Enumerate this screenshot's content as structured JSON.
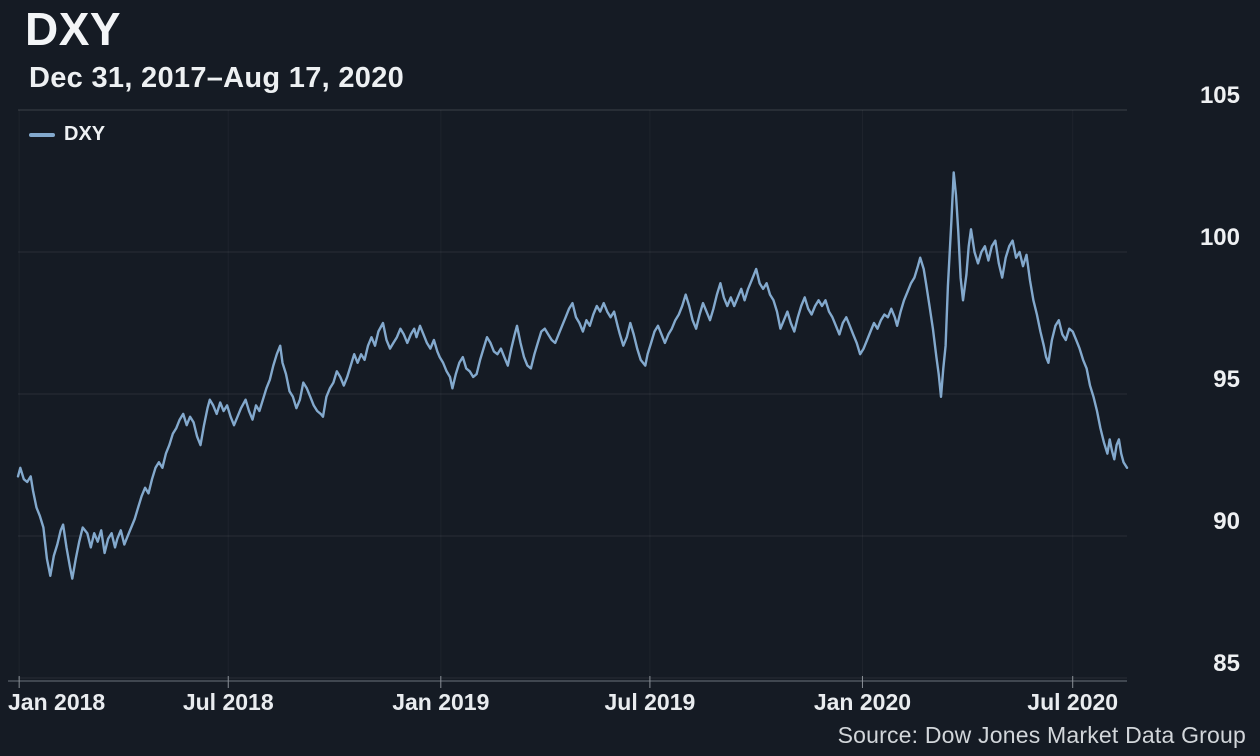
{
  "header": {
    "title": "DXY",
    "subtitle": "Dec 31, 2017–Aug 17, 2020"
  },
  "legend": {
    "label": "DXY"
  },
  "footer": {
    "source": "Source: Dow Jones Market Data Group"
  },
  "colors": {
    "background": "#151b24",
    "line": "#83a9cd",
    "text": "#eef0f2",
    "muted_text": "#d2d6da"
  },
  "chart_data": {
    "type": "line",
    "title": "DXY",
    "subtitle": "Dec 31, 2017–Aug 17, 2020",
    "series_name": "DXY",
    "x_unit": "days since 2017-12-31",
    "x_range": [
      0,
      960
    ],
    "ylim": [
      85,
      105
    ],
    "y_ticks": [
      85,
      90,
      95,
      100,
      105
    ],
    "x_ticks": [
      {
        "day": 1,
        "label": "Jan 2018"
      },
      {
        "day": 182,
        "label": "Jul 2018"
      },
      {
        "day": 366,
        "label": "Jan 2019"
      },
      {
        "day": 547,
        "label": "Jul 2019"
      },
      {
        "day": 731,
        "label": "Jan 2020"
      },
      {
        "day": 913,
        "label": "Jul 2020"
      }
    ],
    "grid": true,
    "legend_position": "top-left",
    "y_axis_side": "right",
    "points": [
      [
        0,
        92.1
      ],
      [
        2,
        92.4
      ],
      [
        5,
        92.0
      ],
      [
        8,
        91.9
      ],
      [
        11,
        92.1
      ],
      [
        13,
        91.6
      ],
      [
        16,
        91.0
      ],
      [
        19,
        90.7
      ],
      [
        22,
        90.3
      ],
      [
        25,
        89.2
      ],
      [
        28,
        88.6
      ],
      [
        31,
        89.3
      ],
      [
        34,
        89.7
      ],
      [
        37,
        90.2
      ],
      [
        39,
        90.4
      ],
      [
        42,
        89.6
      ],
      [
        45,
        88.9
      ],
      [
        47,
        88.5
      ],
      [
        50,
        89.2
      ],
      [
        53,
        89.8
      ],
      [
        56,
        90.3
      ],
      [
        60,
        90.1
      ],
      [
        63,
        89.6
      ],
      [
        66,
        90.1
      ],
      [
        69,
        89.8
      ],
      [
        72,
        90.2
      ],
      [
        75,
        89.4
      ],
      [
        78,
        89.9
      ],
      [
        81,
        90.1
      ],
      [
        84,
        89.6
      ],
      [
        86,
        89.9
      ],
      [
        89,
        90.2
      ],
      [
        92,
        89.7
      ],
      [
        95,
        90.0
      ],
      [
        98,
        90.3
      ],
      [
        101,
        90.6
      ],
      [
        104,
        91.0
      ],
      [
        107,
        91.4
      ],
      [
        110,
        91.7
      ],
      [
        113,
        91.5
      ],
      [
        116,
        92.0
      ],
      [
        119,
        92.4
      ],
      [
        122,
        92.6
      ],
      [
        125,
        92.4
      ],
      [
        128,
        92.9
      ],
      [
        131,
        93.2
      ],
      [
        134,
        93.6
      ],
      [
        137,
        93.8
      ],
      [
        140,
        94.1
      ],
      [
        143,
        94.3
      ],
      [
        146,
        93.9
      ],
      [
        149,
        94.2
      ],
      [
        152,
        94.0
      ],
      [
        155,
        93.5
      ],
      [
        158,
        93.2
      ],
      [
        161,
        93.9
      ],
      [
        164,
        94.5
      ],
      [
        166,
        94.8
      ],
      [
        169,
        94.6
      ],
      [
        172,
        94.3
      ],
      [
        175,
        94.7
      ],
      [
        178,
        94.4
      ],
      [
        181,
        94.6
      ],
      [
        184,
        94.2
      ],
      [
        187,
        93.9
      ],
      [
        190,
        94.2
      ],
      [
        193,
        94.5
      ],
      [
        197,
        94.8
      ],
      [
        200,
        94.4
      ],
      [
        203,
        94.1
      ],
      [
        206,
        94.6
      ],
      [
        209,
        94.4
      ],
      [
        212,
        94.8
      ],
      [
        215,
        95.2
      ],
      [
        218,
        95.5
      ],
      [
        221,
        96.0
      ],
      [
        224,
        96.4
      ],
      [
        227,
        96.7
      ],
      [
        229,
        96.1
      ],
      [
        232,
        95.7
      ],
      [
        235,
        95.1
      ],
      [
        238,
        94.9
      ],
      [
        241,
        94.5
      ],
      [
        244,
        94.8
      ],
      [
        247,
        95.4
      ],
      [
        250,
        95.2
      ],
      [
        253,
        94.9
      ],
      [
        256,
        94.6
      ],
      [
        259,
        94.4
      ],
      [
        262,
        94.3
      ],
      [
        264,
        94.2
      ],
      [
        267,
        94.9
      ],
      [
        270,
        95.2
      ],
      [
        273,
        95.4
      ],
      [
        276,
        95.8
      ],
      [
        279,
        95.6
      ],
      [
        282,
        95.3
      ],
      [
        285,
        95.6
      ],
      [
        288,
        96.0
      ],
      [
        291,
        96.4
      ],
      [
        294,
        96.1
      ],
      [
        297,
        96.4
      ],
      [
        300,
        96.2
      ],
      [
        303,
        96.7
      ],
      [
        306,
        97.0
      ],
      [
        309,
        96.7
      ],
      [
        312,
        97.2
      ],
      [
        316,
        97.5
      ],
      [
        319,
        96.9
      ],
      [
        322,
        96.6
      ],
      [
        325,
        96.8
      ],
      [
        328,
        97.0
      ],
      [
        331,
        97.3
      ],
      [
        334,
        97.1
      ],
      [
        337,
        96.8
      ],
      [
        340,
        97.1
      ],
      [
        343,
        97.3
      ],
      [
        345,
        97.0
      ],
      [
        348,
        97.4
      ],
      [
        351,
        97.1
      ],
      [
        354,
        96.8
      ],
      [
        357,
        96.6
      ],
      [
        360,
        96.9
      ],
      [
        363,
        96.5
      ],
      [
        365,
        96.3
      ],
      [
        368,
        96.1
      ],
      [
        371,
        95.8
      ],
      [
        374,
        95.6
      ],
      [
        376,
        95.2
      ],
      [
        379,
        95.7
      ],
      [
        382,
        96.1
      ],
      [
        385,
        96.3
      ],
      [
        388,
        95.9
      ],
      [
        391,
        95.8
      ],
      [
        394,
        95.6
      ],
      [
        397,
        95.7
      ],
      [
        400,
        96.2
      ],
      [
        403,
        96.6
      ],
      [
        406,
        97.0
      ],
      [
        409,
        96.8
      ],
      [
        412,
        96.5
      ],
      [
        415,
        96.4
      ],
      [
        418,
        96.6
      ],
      [
        421,
        96.3
      ],
      [
        424,
        96.0
      ],
      [
        427,
        96.6
      ],
      [
        430,
        97.1
      ],
      [
        432,
        97.4
      ],
      [
        435,
        96.8
      ],
      [
        438,
        96.3
      ],
      [
        441,
        96.0
      ],
      [
        444,
        95.9
      ],
      [
        447,
        96.4
      ],
      [
        450,
        96.8
      ],
      [
        453,
        97.2
      ],
      [
        456,
        97.3
      ],
      [
        459,
        97.1
      ],
      [
        462,
        96.9
      ],
      [
        465,
        96.8
      ],
      [
        468,
        97.1
      ],
      [
        471,
        97.4
      ],
      [
        474,
        97.7
      ],
      [
        477,
        98.0
      ],
      [
        480,
        98.2
      ],
      [
        483,
        97.7
      ],
      [
        486,
        97.5
      ],
      [
        489,
        97.2
      ],
      [
        492,
        97.6
      ],
      [
        495,
        97.4
      ],
      [
        498,
        97.8
      ],
      [
        501,
        98.1
      ],
      [
        504,
        97.9
      ],
      [
        507,
        98.2
      ],
      [
        510,
        97.9
      ],
      [
        513,
        97.7
      ],
      [
        516,
        97.9
      ],
      [
        519,
        97.4
      ],
      [
        521,
        97.1
      ],
      [
        524,
        96.7
      ],
      [
        527,
        97.0
      ],
      [
        530,
        97.5
      ],
      [
        533,
        97.1
      ],
      [
        536,
        96.6
      ],
      [
        539,
        96.2
      ],
      [
        543,
        96.0
      ],
      [
        545,
        96.4
      ],
      [
        548,
        96.8
      ],
      [
        551,
        97.2
      ],
      [
        554,
        97.4
      ],
      [
        557,
        97.1
      ],
      [
        560,
        96.8
      ],
      [
        563,
        97.1
      ],
      [
        566,
        97.3
      ],
      [
        569,
        97.6
      ],
      [
        572,
        97.8
      ],
      [
        575,
        98.1
      ],
      [
        578,
        98.5
      ],
      [
        581,
        98.1
      ],
      [
        584,
        97.6
      ],
      [
        587,
        97.3
      ],
      [
        590,
        97.8
      ],
      [
        593,
        98.2
      ],
      [
        596,
        97.9
      ],
      [
        599,
        97.6
      ],
      [
        602,
        98.0
      ],
      [
        605,
        98.5
      ],
      [
        608,
        98.9
      ],
      [
        611,
        98.4
      ],
      [
        614,
        98.1
      ],
      [
        617,
        98.4
      ],
      [
        620,
        98.1
      ],
      [
        623,
        98.4
      ],
      [
        626,
        98.7
      ],
      [
        629,
        98.3
      ],
      [
        632,
        98.7
      ],
      [
        635,
        99.0
      ],
      [
        639,
        99.4
      ],
      [
        642,
        98.9
      ],
      [
        645,
        98.7
      ],
      [
        648,
        98.9
      ],
      [
        651,
        98.5
      ],
      [
        654,
        98.3
      ],
      [
        657,
        97.9
      ],
      [
        660,
        97.3
      ],
      [
        663,
        97.6
      ],
      [
        666,
        97.9
      ],
      [
        669,
        97.5
      ],
      [
        672,
        97.2
      ],
      [
        675,
        97.7
      ],
      [
        678,
        98.1
      ],
      [
        681,
        98.4
      ],
      [
        684,
        98.0
      ],
      [
        687,
        97.8
      ],
      [
        690,
        98.1
      ],
      [
        693,
        98.3
      ],
      [
        696,
        98.1
      ],
      [
        699,
        98.3
      ],
      [
        702,
        97.9
      ],
      [
        705,
        97.7
      ],
      [
        708,
        97.4
      ],
      [
        711,
        97.1
      ],
      [
        714,
        97.5
      ],
      [
        717,
        97.7
      ],
      [
        720,
        97.4
      ],
      [
        723,
        97.1
      ],
      [
        726,
        96.8
      ],
      [
        729,
        96.4
      ],
      [
        732,
        96.6
      ],
      [
        735,
        96.9
      ],
      [
        738,
        97.2
      ],
      [
        741,
        97.5
      ],
      [
        744,
        97.3
      ],
      [
        747,
        97.6
      ],
      [
        750,
        97.8
      ],
      [
        753,
        97.7
      ],
      [
        756,
        98.0
      ],
      [
        759,
        97.7
      ],
      [
        761,
        97.4
      ],
      [
        764,
        97.9
      ],
      [
        767,
        98.3
      ],
      [
        770,
        98.6
      ],
      [
        773,
        98.9
      ],
      [
        776,
        99.1
      ],
      [
        779,
        99.5
      ],
      [
        781,
        99.8
      ],
      [
        784,
        99.4
      ],
      [
        786,
        98.9
      ],
      [
        789,
        98.1
      ],
      [
        792,
        97.3
      ],
      [
        795,
        96.3
      ],
      [
        797,
        95.7
      ],
      [
        799,
        94.9
      ],
      [
        801,
        95.9
      ],
      [
        803,
        96.7
      ],
      [
        805,
        98.8
      ],
      [
        808,
        101.1
      ],
      [
        810,
        102.8
      ],
      [
        812,
        102.0
      ],
      [
        814,
        100.7
      ],
      [
        816,
        99.1
      ],
      [
        818,
        98.3
      ],
      [
        821,
        99.2
      ],
      [
        823,
        100.2
      ],
      [
        825,
        100.8
      ],
      [
        828,
        100.0
      ],
      [
        831,
        99.6
      ],
      [
        834,
        100.0
      ],
      [
        837,
        100.2
      ],
      [
        840,
        99.7
      ],
      [
        843,
        100.2
      ],
      [
        846,
        100.4
      ],
      [
        849,
        99.6
      ],
      [
        852,
        99.1
      ],
      [
        855,
        99.8
      ],
      [
        858,
        100.2
      ],
      [
        861,
        100.4
      ],
      [
        864,
        99.8
      ],
      [
        867,
        100.0
      ],
      [
        870,
        99.5
      ],
      [
        873,
        99.9
      ],
      [
        876,
        99.0
      ],
      [
        879,
        98.3
      ],
      [
        882,
        97.8
      ],
      [
        885,
        97.2
      ],
      [
        888,
        96.7
      ],
      [
        890,
        96.3
      ],
      [
        892,
        96.1
      ],
      [
        895,
        96.9
      ],
      [
        898,
        97.4
      ],
      [
        901,
        97.6
      ],
      [
        904,
        97.1
      ],
      [
        907,
        96.9
      ],
      [
        910,
        97.3
      ],
      [
        913,
        97.2
      ],
      [
        916,
        96.9
      ],
      [
        919,
        96.6
      ],
      [
        922,
        96.2
      ],
      [
        925,
        95.9
      ],
      [
        928,
        95.3
      ],
      [
        931,
        94.9
      ],
      [
        934,
        94.4
      ],
      [
        937,
        93.8
      ],
      [
        940,
        93.3
      ],
      [
        943,
        92.9
      ],
      [
        945,
        93.4
      ],
      [
        947,
        93.0
      ],
      [
        949,
        92.7
      ],
      [
        951,
        93.2
      ],
      [
        953,
        93.4
      ],
      [
        955,
        92.9
      ],
      [
        957,
        92.6
      ],
      [
        960,
        92.4
      ]
    ]
  }
}
